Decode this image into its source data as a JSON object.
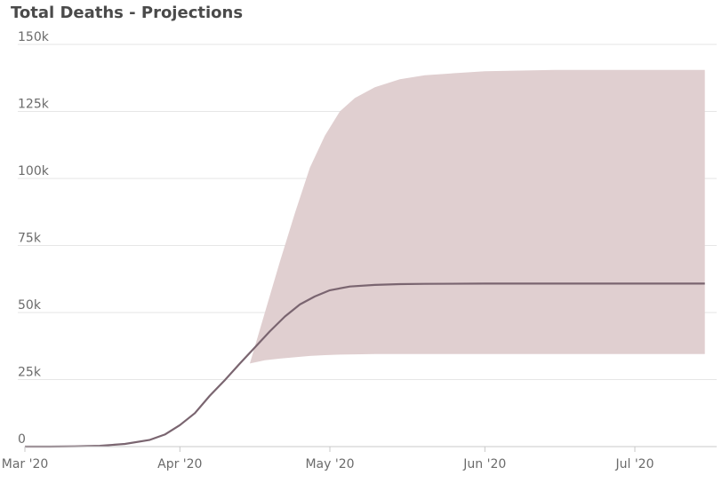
{
  "chart_data": {
    "type": "area",
    "title": "Total Deaths - Projections",
    "xlabel": "",
    "ylabel": "",
    "x_ticks": [
      "Mar '20",
      "Apr '20",
      "May '20",
      "Jun '20",
      "Jul '20"
    ],
    "x_range": [
      "2020-03-01",
      "2020-07-15"
    ],
    "y_ticks": [
      {
        "value": 0,
        "label": "0"
      },
      {
        "value": 25000,
        "label": "25k"
      },
      {
        "value": 50000,
        "label": "50k"
      },
      {
        "value": 75000,
        "label": "75k"
      },
      {
        "value": 100000,
        "label": "100k"
      },
      {
        "value": 125000,
        "label": "125k"
      },
      {
        "value": 150000,
        "label": "150k"
      }
    ],
    "ylim": [
      0,
      150000
    ],
    "grid": true,
    "legend": "none",
    "colors": {
      "line": "#7a6570",
      "band": "#e0cfd0",
      "grid": "#e6e6e6",
      "axis": "#c8c8c8"
    },
    "series": [
      {
        "type": "line",
        "x": [
          "2020-03-01",
          "2020-03-06",
          "2020-03-11",
          "2020-03-16",
          "2020-03-21",
          "2020-03-26",
          "2020-03-29",
          "2020-04-01",
          "2020-04-04",
          "2020-04-07",
          "2020-04-10",
          "2020-04-13",
          "2020-04-16",
          "2020-04-19",
          "2020-04-22",
          "2020-04-25",
          "2020-04-28",
          "2020-05-01",
          "2020-05-05",
          "2020-05-10",
          "2020-05-15",
          "2020-05-20",
          "2020-06-01",
          "2020-06-15",
          "2020-07-01",
          "2020-07-15"
        ],
        "values": [
          0,
          0,
          100,
          300,
          1000,
          2500,
          4500,
          8000,
          12500,
          19000,
          24800,
          31000,
          37000,
          43000,
          48500,
          53000,
          56000,
          58300,
          59700,
          60300,
          60600,
          60700,
          60800,
          60800,
          60800,
          60800
        ]
      },
      {
        "type": "range",
        "x": [
          "2020-04-15",
          "2020-04-18",
          "2020-04-21",
          "2020-04-24",
          "2020-04-27",
          "2020-04-30",
          "2020-05-03",
          "2020-05-06",
          "2020-05-10",
          "2020-05-15",
          "2020-05-20",
          "2020-06-01",
          "2020-06-15",
          "2020-07-01",
          "2020-07-15"
        ],
        "low": [
          31000,
          32200,
          32800,
          33300,
          33800,
          34100,
          34300,
          34400,
          34500,
          34500,
          34500,
          34500,
          34500,
          34500,
          34500
        ],
        "high": [
          31000,
          50000,
          69000,
          87000,
          104000,
          116000,
          125000,
          130000,
          134000,
          137000,
          138500,
          140000,
          140500,
          140500,
          140500
        ]
      }
    ]
  }
}
